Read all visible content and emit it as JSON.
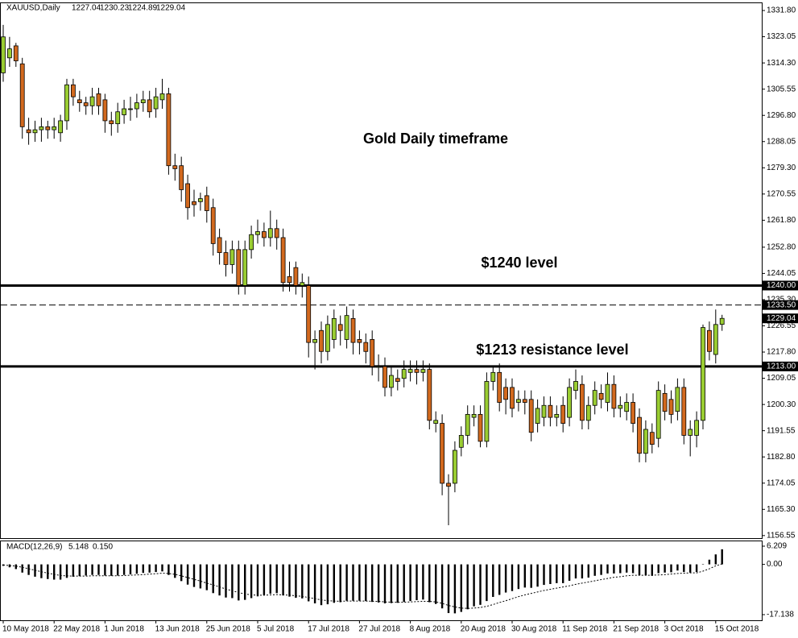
{
  "chart_data": {
    "type": "candlestick",
    "symbol": "XAUUSD,Daily",
    "annotations": [
      "Gold Daily timeframe",
      "$1240 level",
      "$1213 resistance level"
    ],
    "up_color": "#9acd32",
    "down_color": "#d2691e",
    "categories": [
      "10 May 2018",
      null,
      null,
      null,
      null,
      null,
      null,
      null,
      "22 May 2018",
      null,
      null,
      null,
      null,
      null,
      null,
      null,
      "1 Jun 2018",
      null,
      null,
      null,
      null,
      null,
      null,
      null,
      "13 Jun 2018",
      null,
      null,
      null,
      null,
      null,
      null,
      null,
      "25 Jun 2018",
      null,
      null,
      null,
      null,
      null,
      null,
      null,
      "5 Jul 2018",
      null,
      null,
      null,
      null,
      null,
      null,
      null,
      "17 Jul 2018",
      null,
      null,
      null,
      null,
      null,
      null,
      null,
      "27 Jul 2018",
      null,
      null,
      null,
      null,
      null,
      null,
      null,
      "8 Aug 2018",
      null,
      null,
      null,
      null,
      null,
      null,
      null,
      "20 Aug 2018",
      null,
      null,
      null,
      null,
      null,
      null,
      null,
      "30 Aug 2018",
      null,
      null,
      null,
      null,
      null,
      null,
      null,
      "11 Sep 2018",
      null,
      null,
      null,
      null,
      null,
      null,
      null,
      "21 Sep 2018",
      null,
      null,
      null,
      null,
      null,
      null,
      null,
      "3 Oct 2018",
      null,
      null,
      null,
      null,
      null,
      null,
      null,
      "15 Oct 2018",
      null
    ],
    "open": [
      1311,
      1316,
      1320,
      1314,
      1292,
      1291,
      1292,
      1293,
      1292,
      1291,
      1295,
      1307,
      1302,
      1301,
      1300,
      1304,
      1302,
      1295,
      1294,
      1297,
      1299,
      1299,
      1301,
      1302,
      1299,
      1302,
      1304,
      1280,
      1280,
      1274,
      1268,
      1268,
      1270,
      1266,
      1256,
      1251,
      1247,
      1252,
      1240,
      1252,
      1257,
      1258,
      1256,
      1259,
      1256,
      1243,
      1246,
      1240,
      1240,
      1221,
      1225,
      1218,
      1222,
      1227,
      1222,
      1229,
      1222,
      1221,
      1222,
      1213,
      1213,
      1206,
      1209,
      1209,
      1211,
      1212,
      1211,
      1212,
      1194,
      1194,
      1174,
      1174,
      1186,
      1190,
      1196,
      1197,
      1188,
      1208,
      1211,
      1206,
      1206,
      1201,
      1202,
      1202,
      1194,
      1196,
      1200,
      1196,
      1200,
      1196,
      1205,
      1207,
      1195,
      1200,
      1204,
      1201,
      1207,
      1199,
      1198,
      1201,
      1196,
      1184,
      1191,
      1189,
      1204,
      1202,
      1198,
      1206,
      1190,
      1190,
      1195,
      1225,
      1217,
      1227.04
    ],
    "high": [
      1327,
      1323,
      1321,
      1316,
      1296,
      1295,
      1296,
      1295,
      1296,
      1297,
      1309,
      1309,
      1305,
      1303,
      1306,
      1306,
      1304,
      1298,
      1301,
      1302,
      1303,
      1304,
      1305,
      1305,
      1306,
      1309,
      1306,
      1284,
      1283,
      1277,
      1272,
      1271,
      1273,
      1269,
      1259,
      1255,
      1255,
      1255,
      1255,
      1260,
      1262,
      1261,
      1265,
      1262,
      1259,
      1248,
      1248,
      1244,
      1243,
      1225,
      1228,
      1230,
      1232,
      1230,
      1233,
      1232,
      1225,
      1224,
      1225,
      1217,
      1216,
      1213,
      1212,
      1215,
      1215,
      1215,
      1215,
      1214,
      1198,
      1197,
      1177,
      1188,
      1193,
      1200,
      1200,
      1200,
      1211,
      1213,
      1214,
      1209,
      1209,
      1205,
      1205,
      1205,
      1202,
      1203,
      1203,
      1200,
      1203,
      1209,
      1212,
      1210,
      1203,
      1208,
      1207,
      1211,
      1210,
      1203,
      1204,
      1204,
      1199,
      1195,
      1194,
      1208,
      1207,
      1205,
      1209,
      1209,
      1195,
      1198,
      1227,
      1228,
      1232,
      1230.23
    ],
    "low": [
      1308,
      1313,
      1313,
      1289,
      1287,
      1288,
      1288,
      1289,
      1289,
      1288,
      1292,
      1300,
      1298,
      1297,
      1297,
      1297,
      1291,
      1290,
      1291,
      1294,
      1295,
      1296,
      1298,
      1296,
      1296,
      1299,
      1277,
      1275,
      1268,
      1262,
      1263,
      1265,
      1261,
      1250,
      1247,
      1243,
      1244,
      1237,
      1237,
      1249,
      1254,
      1253,
      1253,
      1252,
      1238,
      1238,
      1237,
      1236,
      1216,
      1212,
      1214,
      1215,
      1219,
      1220,
      1219,
      1217,
      1217,
      1214,
      1210,
      1208,
      1203,
      1203,
      1205,
      1206,
      1208,
      1207,
      1208,
      1192,
      1191,
      1170,
      1160,
      1171,
      1183,
      1187,
      1193,
      1186,
      1186,
      1205,
      1198,
      1197,
      1196,
      1198,
      1197,
      1188,
      1191,
      1193,
      1193,
      1193,
      1191,
      1193,
      1202,
      1192,
      1192,
      1197,
      1199,
      1198,
      1196,
      1196,
      1195,
      1191,
      1181,
      1181,
      1184,
      1186,
      1195,
      1194,
      1195,
      1187,
      1183,
      1186,
      1192,
      1215,
      1214,
      1224.89
    ],
    "close": [
      1323,
      1319,
      1315,
      1293,
      1291,
      1292,
      1293,
      1292,
      1293,
      1295,
      1307,
      1303,
      1301,
      1300,
      1303,
      1300,
      1295,
      1294,
      1298,
      1299,
      1299,
      1301,
      1302,
      1298,
      1303,
      1304,
      1280,
      1279,
      1272,
      1266,
      1267,
      1269,
      1265,
      1254,
      1251,
      1247,
      1252,
      1240,
      1252,
      1257,
      1258,
      1256,
      1259,
      1256,
      1241,
      1241,
      1240,
      1241,
      1221,
      1222,
      1218,
      1227,
      1229,
      1225,
      1230,
      1221,
      1221,
      1218,
      1213,
      1213,
      1206,
      1210,
      1208,
      1212,
      1212,
      1211,
      1212,
      1195,
      1195,
      1174,
      1173,
      1185,
      1190,
      1197,
      1197,
      1188,
      1208,
      1211,
      1201,
      1202,
      1199,
      1202,
      1201,
      1191,
      1199,
      1200,
      1196,
      1197,
      1194,
      1206,
      1208,
      1195,
      1200,
      1205,
      1202,
      1207,
      1199,
      1200,
      1201,
      1194,
      1184,
      1192,
      1187,
      1205,
      1198,
      1197,
      1206,
      1190,
      1192,
      1195,
      1226,
      1218,
      1227,
      1229.04
    ],
    "ylim": [
      1155.7,
      1334.5
    ],
    "yticks": [
      {
        "value": 1331.8,
        "label": "1331.80"
      },
      1323.05,
      {
        "value": 1314.3,
        "label": "1314.30"
      },
      1305.55,
      {
        "value": 1296.8,
        "label": "1296.80"
      },
      1288.05,
      {
        "value": 1279.3,
        "label": "1279.30"
      },
      1270.55,
      {
        "value": 1261.8,
        "label": "1261.80"
      },
      {
        "value": 1252.8,
        "label": "1252.80"
      },
      1244.05,
      {
        "value": 1235.3,
        "label": "1235.30"
      },
      1226.55,
      {
        "value": 1217.8,
        "label": "1217.80"
      },
      1209.05,
      {
        "value": 1200.3,
        "label": "1200.30"
      },
      1191.55,
      {
        "value": 1182.8,
        "label": "1182.80"
      },
      1174.05,
      {
        "value": 1165.3,
        "label": "1165.30"
      },
      1156.55
    ],
    "levels": [
      {
        "value": 1240,
        "label": "1240.00",
        "style": "solid"
      },
      {
        "value": 1233.5,
        "label": "1233.50",
        "style": "dashed"
      },
      {
        "value": 1213,
        "label": "1213.00",
        "style": "solid"
      }
    ],
    "macd": {
      "name": "MACD(12,26,9)",
      "current_labels": [
        "5.148",
        "0.150"
      ],
      "ylim": [
        -19.06,
        8.13
      ],
      "yticks": [
        6.209,
        {
          "value": 0,
          "label": "0.00"
        },
        -17.138
      ],
      "histogram": [
        -0.5,
        -1.0,
        -1.6,
        -2.8,
        -3.6,
        -4.2,
        -4.7,
        -5.0,
        -5.2,
        -5.2,
        -4.6,
        -4.2,
        -4.0,
        -3.8,
        -3.6,
        -3.6,
        -3.8,
        -3.9,
        -3.8,
        -3.6,
        -3.4,
        -3.2,
        -2.9,
        -2.8,
        -2.6,
        -2.4,
        -3.6,
        -4.6,
        -5.7,
        -6.9,
        -7.7,
        -8.2,
        -8.8,
        -9.8,
        -10.6,
        -11.3,
        -11.5,
        -12.3,
        -12.1,
        -11.5,
        -10.9,
        -10.5,
        -10.0,
        -9.8,
        -10.6,
        -11.0,
        -11.4,
        -11.6,
        -12.6,
        -13.3,
        -13.9,
        -13.6,
        -13.1,
        -12.9,
        -12.4,
        -12.4,
        -12.4,
        -12.5,
        -12.8,
        -13.0,
        -13.3,
        -13.2,
        -13.1,
        -12.8,
        -12.5,
        -12.2,
        -12.0,
        -12.9,
        -13.5,
        -15.0,
        -16.6,
        -16.7,
        -16.2,
        -15.3,
        -14.3,
        -13.8,
        -12.5,
        -11.1,
        -10.4,
        -9.6,
        -9.1,
        -8.4,
        -7.9,
        -8.0,
        -7.6,
        -7.0,
        -6.7,
        -6.4,
        -6.4,
        -5.6,
        -4.8,
        -4.8,
        -4.5,
        -3.9,
        -3.6,
        -3.1,
        -3.1,
        -3.0,
        -2.8,
        -3.0,
        -3.7,
        -3.7,
        -3.9,
        -3.0,
        -2.8,
        -2.7,
        -2.1,
        -2.6,
        -2.8,
        -2.6,
        0.1,
        1.6,
        3.4,
        5.148
      ],
      "signal": [
        -0.2,
        -0.4,
        -0.6,
        -1.0,
        -1.5,
        -2.0,
        -2.5,
        -3.0,
        -3.4,
        -3.8,
        -3.9,
        -4.0,
        -4.0,
        -4.0,
        -3.9,
        -3.9,
        -3.9,
        -3.9,
        -3.9,
        -3.8,
        -3.7,
        -3.6,
        -3.5,
        -3.3,
        -3.2,
        -3.0,
        -3.1,
        -3.4,
        -3.9,
        -4.5,
        -5.1,
        -5.7,
        -6.4,
        -7.0,
        -7.7,
        -8.4,
        -9.0,
        -9.6,
        -10.1,
        -10.4,
        -10.5,
        -10.5,
        -10.4,
        -10.3,
        -10.4,
        -10.5,
        -10.7,
        -10.9,
        -11.3,
        -11.7,
        -12.1,
        -12.4,
        -12.5,
        -12.6,
        -12.5,
        -12.5,
        -12.5,
        -12.5,
        -12.6,
        -12.6,
        -12.8,
        -12.9,
        -12.9,
        -12.9,
        -12.8,
        -12.7,
        -12.6,
        -12.6,
        -12.8,
        -13.3,
        -14.0,
        -14.5,
        -14.9,
        -15.0,
        -14.9,
        -14.7,
        -14.3,
        -13.7,
        -13.0,
        -12.4,
        -11.7,
        -11.0,
        -10.4,
        -9.9,
        -9.4,
        -8.9,
        -8.5,
        -8.1,
        -7.7,
        -7.3,
        -6.8,
        -6.4,
        -6.0,
        -5.6,
        -5.2,
        -4.8,
        -4.4,
        -4.2,
        -3.9,
        -3.7,
        -3.7,
        -3.7,
        -3.7,
        -3.6,
        -3.5,
        -3.3,
        -3.1,
        -3.0,
        -2.9,
        -2.9,
        -2.3,
        -1.5,
        -0.5,
        0.15
      ]
    }
  }
}
